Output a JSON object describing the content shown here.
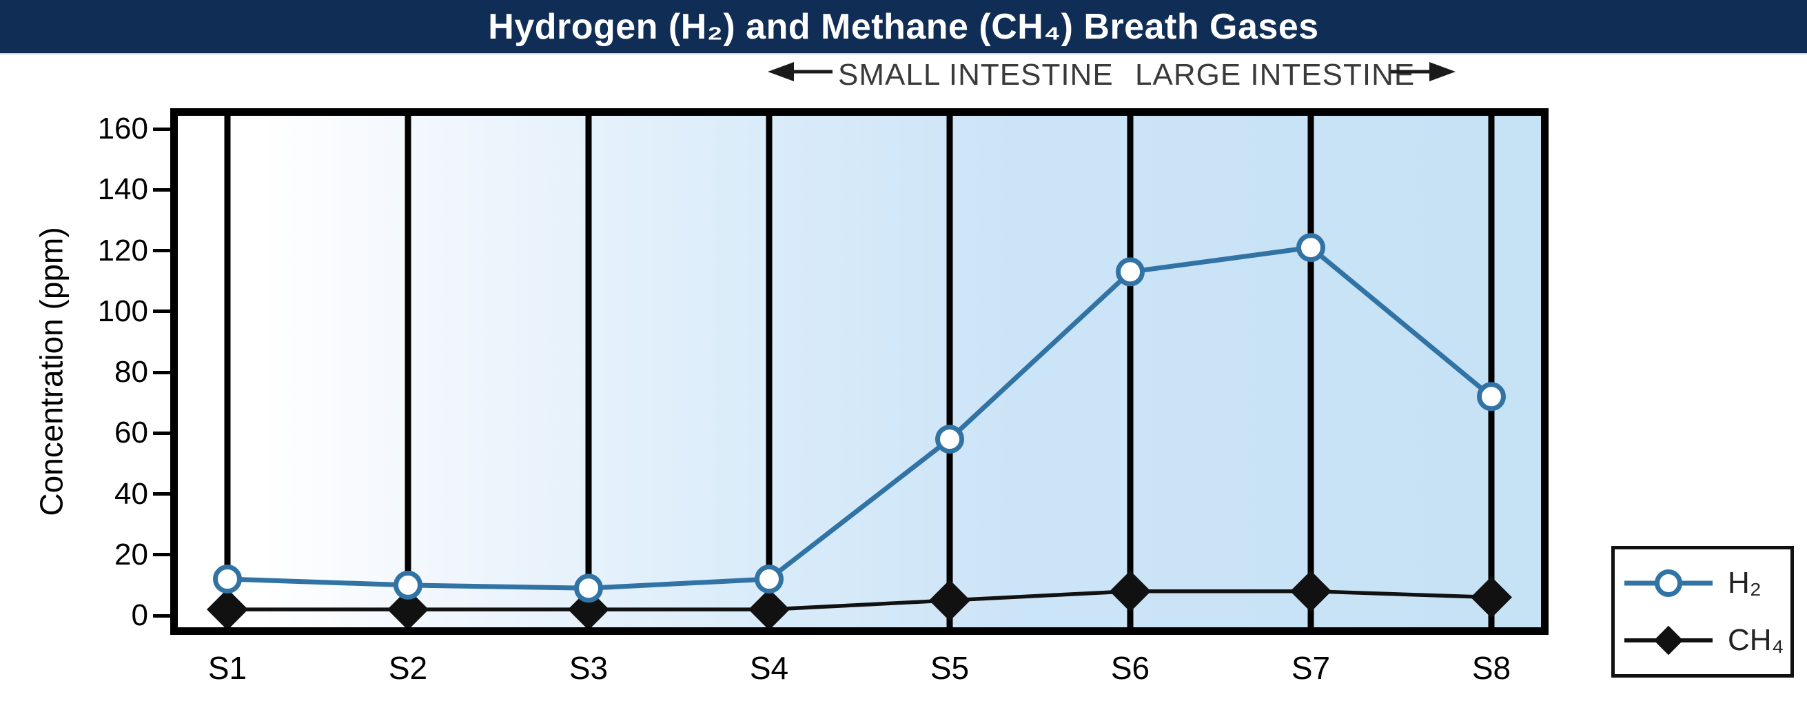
{
  "title_bar": {
    "title": "Hydrogen (H₂) and Methane (CH₄) Breath Gases",
    "bg_color": "#102d55",
    "text_color": "#ffffff"
  },
  "annotations": {
    "small_intestine": "SMALL INTESTINE",
    "large_intestine": "LARGE INTESTINE"
  },
  "legend": {
    "items": [
      {
        "label": "H₂",
        "marker": "open-circle",
        "color": "#3173a5"
      },
      {
        "label": "CH₄",
        "marker": "filled-diamond",
        "color": "#111111"
      }
    ],
    "position": "bottom-right-outside"
  },
  "chart_data": {
    "type": "line",
    "title": "Hydrogen (H₂) and Methane (CH₄) Breath Gases",
    "categories": [
      "S1",
      "S2",
      "S3",
      "S4",
      "S5",
      "S6",
      "S7",
      "S8"
    ],
    "series": [
      {
        "name": "H₂",
        "marker": "open-circle",
        "color": "#3173a5",
        "values": [
          12,
          10,
          9,
          12,
          58,
          113,
          121,
          72
        ]
      },
      {
        "name": "CH₄",
        "marker": "filled-diamond",
        "color": "#111111",
        "values": [
          2,
          2,
          2,
          2,
          5,
          8,
          8,
          6
        ]
      }
    ],
    "xlabel": "",
    "ylabel": "Concentration (ppm)",
    "ylim": [
      0,
      160
    ],
    "yticks": [
      0,
      20,
      40,
      60,
      80,
      100,
      120,
      140,
      160
    ],
    "grid": "vertical-line-at-each-category",
    "plot_background": "gradient-white-to-lightblue-left-to-right",
    "region_annotations": [
      {
        "label": "SMALL INTESTINE",
        "arrow": "left",
        "side": "left-of-boundary"
      },
      {
        "label": "LARGE INTESTINE",
        "arrow": "right",
        "side": "right-of-boundary"
      }
    ]
  }
}
